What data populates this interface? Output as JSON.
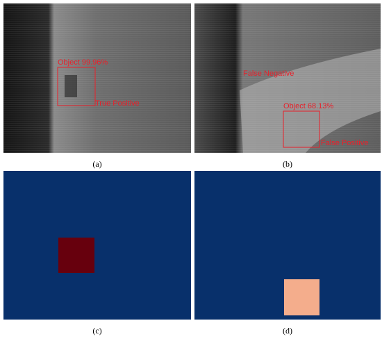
{
  "panels": [
    {
      "caption": "(a)",
      "detection": "Object 99.96%",
      "result": "True Positive"
    },
    {
      "caption": "(b)",
      "detection": "Object 68.13%",
      "result": "False Positive",
      "missed": "False Negative"
    },
    {
      "caption": "(c)"
    },
    {
      "caption": "(d)"
    }
  ]
}
